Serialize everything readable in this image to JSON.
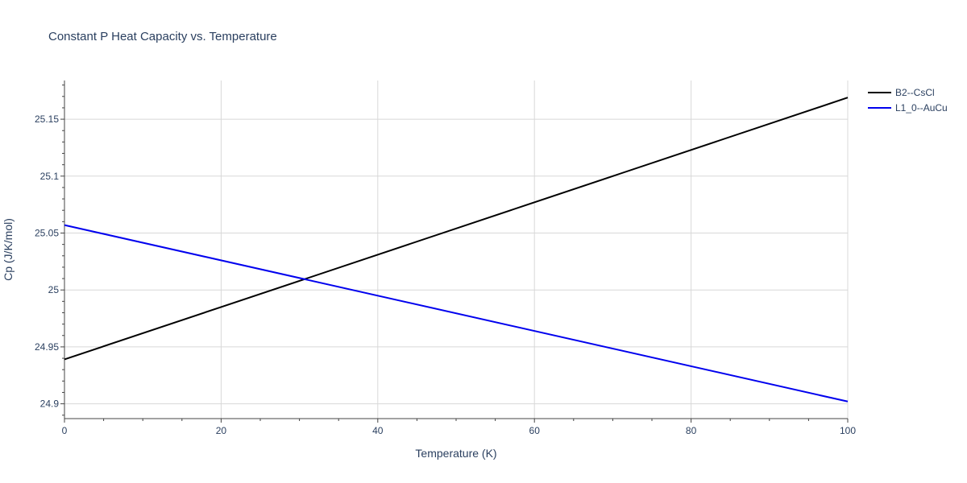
{
  "chart_data": {
    "type": "line",
    "title": "Constant P Heat Capacity vs. Temperature",
    "xlabel": "Temperature (K)",
    "ylabel": "Cp (J/K/mol)",
    "xlim": [
      0,
      100
    ],
    "ylim": [
      24.887,
      25.184
    ],
    "x_ticks": [
      0,
      20,
      40,
      60,
      80,
      100
    ],
    "x_tick_labels": [
      "0",
      "20",
      "40",
      "60",
      "80",
      "100"
    ],
    "y_ticks": [
      24.9,
      24.95,
      25,
      25.05,
      25.1,
      25.15
    ],
    "y_tick_labels": [
      "24.9",
      "24.95",
      "25",
      "25.05",
      "25.1",
      "25.15"
    ],
    "grid": true,
    "legend_position": "top-right",
    "series": [
      {
        "name": "B2--CsCl",
        "color": "#000000",
        "x": [
          0,
          100
        ],
        "y": [
          24.939,
          25.169
        ]
      },
      {
        "name": "L1_0--AuCu",
        "color": "#0000ee",
        "x": [
          0,
          100
        ],
        "y": [
          25.057,
          24.902
        ]
      }
    ]
  }
}
